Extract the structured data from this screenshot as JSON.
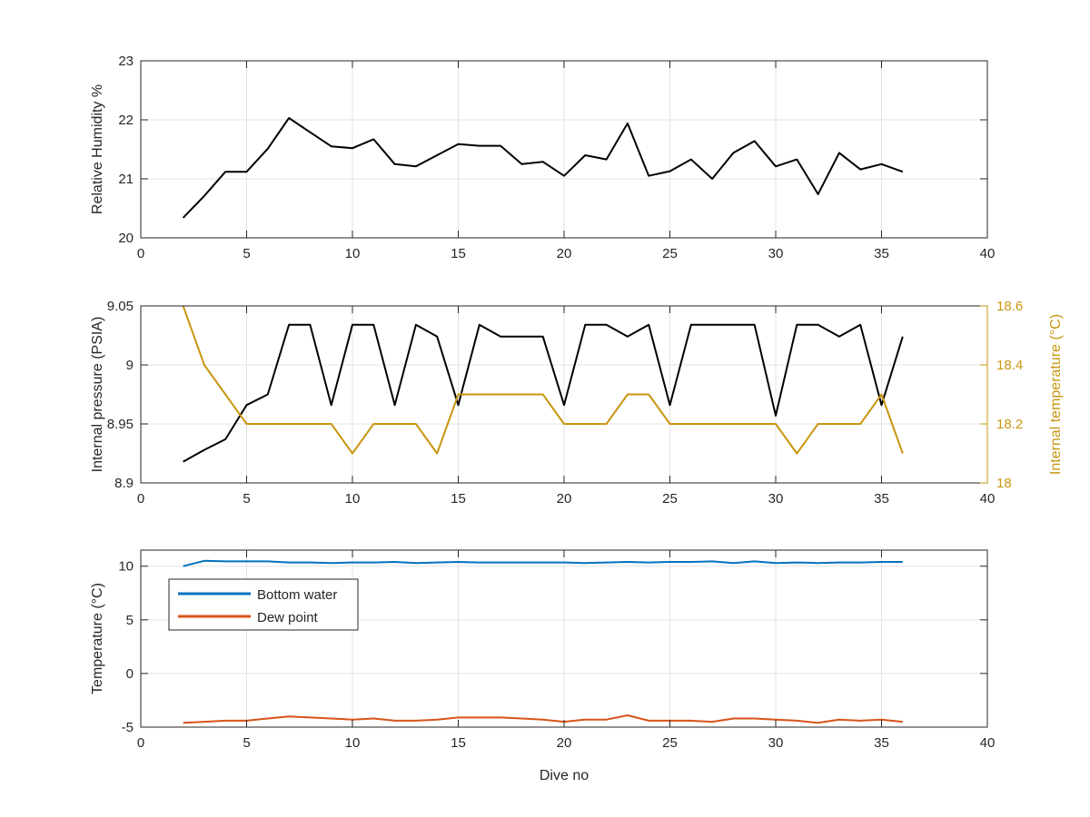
{
  "chart_data": [
    {
      "type": "line",
      "xlabel": "",
      "ylabel": "Relative Humidity %",
      "xlim": [
        0,
        40
      ],
      "ylim": [
        20,
        23
      ],
      "xticks": [
        0,
        5,
        10,
        15,
        20,
        25,
        30,
        35,
        40
      ],
      "yticks": [
        20,
        21,
        22,
        23
      ],
      "grid": true,
      "series": [
        {
          "color": "#000000",
          "x": [
            2,
            3,
            4,
            5,
            6,
            7,
            8,
            9,
            10,
            11,
            12,
            13,
            14,
            15,
            16,
            17,
            18,
            19,
            20,
            21,
            22,
            23,
            24,
            25,
            26,
            27,
            28,
            29,
            30,
            31,
            32,
            33,
            34,
            35,
            36
          ],
          "values": [
            20.34,
            20.71,
            21.12,
            21.12,
            21.51,
            22.03,
            21.79,
            21.55,
            21.52,
            21.67,
            21.25,
            21.21,
            21.4,
            21.59,
            21.56,
            21.56,
            21.25,
            21.29,
            21.05,
            21.4,
            21.33,
            21.94,
            21.05,
            21.13,
            21.33,
            21.0,
            21.44,
            21.64,
            21.21,
            21.33,
            20.74,
            21.44,
            21.16,
            21.25,
            21.12
          ]
        }
      ]
    },
    {
      "type": "line",
      "xlabel": "",
      "ylabel": "Internal pressure (PSIA)",
      "ylabel_right": "Internal temperature (°C)",
      "xlim": [
        0,
        40
      ],
      "ylim": [
        8.9,
        9.05
      ],
      "ylim_right": [
        18,
        18.6
      ],
      "xticks": [
        0,
        5,
        10,
        15,
        20,
        25,
        30,
        35,
        40
      ],
      "yticks": [
        8.9,
        8.95,
        9,
        9.05
      ],
      "ytick_labels": [
        "8.9",
        "8.95",
        "9",
        "9.05"
      ],
      "yticks_right": [
        18,
        18.2,
        18.4,
        18.6
      ],
      "ytick_labels_right": [
        "18",
        "18.2",
        "18.4",
        "18.6"
      ],
      "grid": true,
      "series": [
        {
          "color": "#000000",
          "axis": "left",
          "x": [
            2,
            3,
            4,
            5,
            6,
            7,
            8,
            9,
            10,
            11,
            12,
            13,
            14,
            15,
            16,
            17,
            18,
            19,
            20,
            21,
            22,
            23,
            24,
            25,
            26,
            27,
            28,
            29,
            30,
            31,
            32,
            33,
            34,
            35,
            36
          ],
          "values": [
            8.918,
            8.928,
            8.937,
            8.966,
            8.975,
            9.034,
            9.034,
            8.966,
            9.034,
            9.034,
            8.966,
            9.034,
            9.024,
            8.966,
            9.034,
            9.024,
            9.024,
            9.024,
            8.966,
            9.034,
            9.034,
            9.024,
            9.034,
            8.966,
            9.034,
            9.034,
            9.034,
            9.034,
            8.957,
            9.034,
            9.034,
            9.024,
            9.034,
            8.966,
            9.024
          ]
        },
        {
          "color": "#c8960f",
          "axis": "right",
          "x": [
            2,
            3,
            4,
            5,
            6,
            7,
            8,
            9,
            10,
            11,
            12,
            13,
            14,
            15,
            16,
            17,
            18,
            19,
            20,
            21,
            22,
            23,
            24,
            25,
            26,
            27,
            28,
            29,
            30,
            31,
            32,
            33,
            34,
            35,
            36
          ],
          "values": [
            18.6,
            18.4,
            18.3,
            18.2,
            18.2,
            18.2,
            18.2,
            18.2,
            18.1,
            18.2,
            18.2,
            18.2,
            18.1,
            18.3,
            18.3,
            18.3,
            18.3,
            18.3,
            18.2,
            18.2,
            18.2,
            18.3,
            18.3,
            18.2,
            18.2,
            18.2,
            18.2,
            18.2,
            18.2,
            18.1,
            18.2,
            18.2,
            18.2,
            18.3,
            18.1
          ]
        }
      ]
    },
    {
      "type": "line",
      "xlabel": "Dive no",
      "ylabel": "Temperature (°C)",
      "xlim": [
        0,
        40
      ],
      "ylim": [
        -5,
        11.5
      ],
      "xticks": [
        0,
        5,
        10,
        15,
        20,
        25,
        30,
        35,
        40
      ],
      "yticks": [
        -5,
        0,
        5,
        10
      ],
      "grid": true,
      "legend_position": "top-left",
      "series": [
        {
          "name": "Bottom water",
          "color": "#0072bd",
          "x": [
            2,
            3,
            4,
            5,
            6,
            7,
            8,
            9,
            10,
            11,
            12,
            13,
            14,
            15,
            16,
            17,
            18,
            19,
            20,
            21,
            22,
            23,
            24,
            25,
            26,
            27,
            28,
            29,
            30,
            31,
            32,
            33,
            34,
            35,
            36
          ],
          "values": [
            10.0,
            10.5,
            10.45,
            10.45,
            10.45,
            10.35,
            10.35,
            10.3,
            10.35,
            10.35,
            10.4,
            10.3,
            10.35,
            10.4,
            10.35,
            10.35,
            10.35,
            10.35,
            10.35,
            10.3,
            10.35,
            10.4,
            10.35,
            10.4,
            10.4,
            10.45,
            10.3,
            10.45,
            10.3,
            10.35,
            10.3,
            10.35,
            10.35,
            10.4,
            10.4
          ]
        },
        {
          "name": "Dew point",
          "color": "#d95319",
          "x": [
            2,
            3,
            4,
            5,
            6,
            7,
            8,
            9,
            10,
            11,
            12,
            13,
            14,
            15,
            16,
            17,
            18,
            19,
            20,
            21,
            22,
            23,
            24,
            25,
            26,
            27,
            28,
            29,
            30,
            31,
            32,
            33,
            34,
            35,
            36
          ],
          "values": [
            -4.6,
            -4.5,
            -4.4,
            -4.4,
            -4.2,
            -4.0,
            -4.1,
            -4.2,
            -4.3,
            -4.2,
            -4.4,
            -4.4,
            -4.3,
            -4.1,
            -4.1,
            -4.1,
            -4.2,
            -4.3,
            -4.5,
            -4.3,
            -4.3,
            -3.9,
            -4.4,
            -4.4,
            -4.4,
            -4.5,
            -4.2,
            -4.2,
            -4.3,
            -4.4,
            -4.6,
            -4.3,
            -4.4,
            -4.3,
            -4.5
          ]
        }
      ]
    }
  ]
}
